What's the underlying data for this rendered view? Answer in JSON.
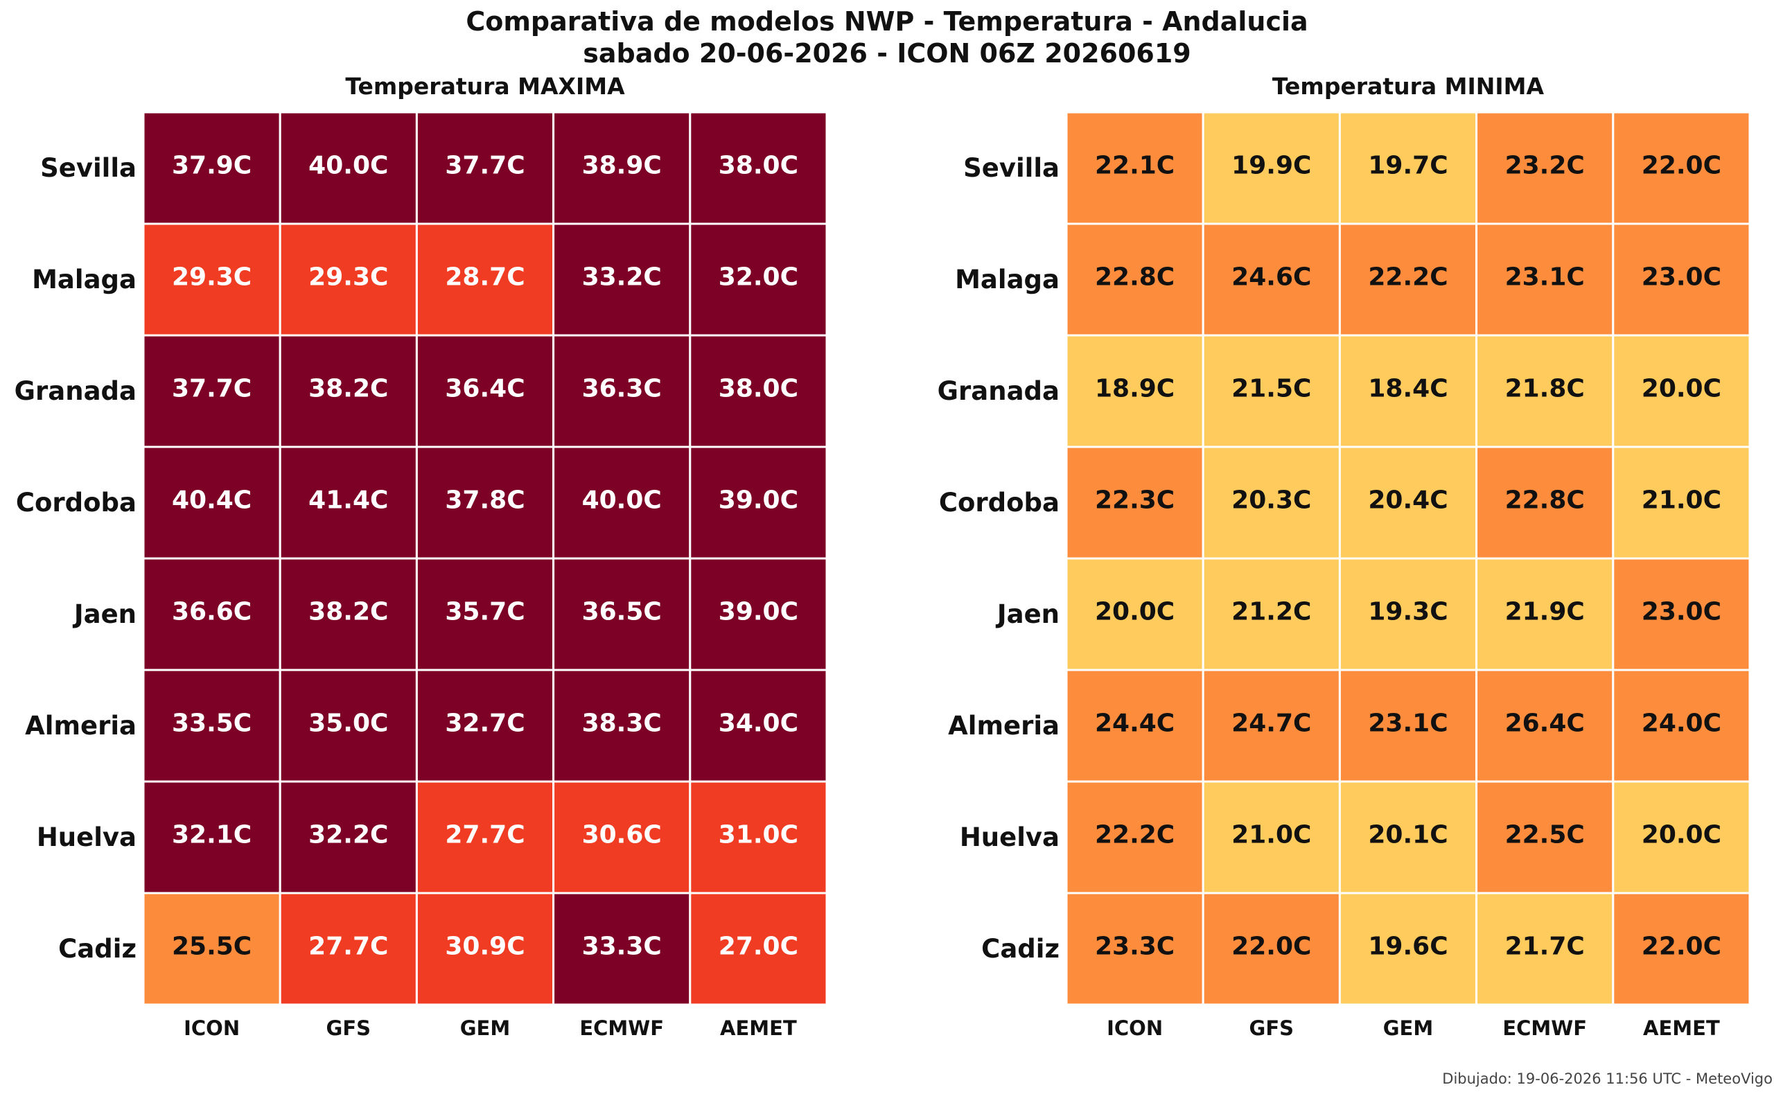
{
  "title_line1": "Comparativa de modelos NWP - Temperatura - Andalucia",
  "title_line2": "sabado 20-06-2026 - ICON 06Z 20260619",
  "footer": "Dibujado: 19-06-2026 11:56 UTC - MeteoVigo",
  "chart_data": [
    {
      "type": "heatmap",
      "title": "Temperatura MAXIMA",
      "x_categories": [
        "ICON",
        "GFS",
        "GEM",
        "ECMWF",
        "AEMET"
      ],
      "y_categories": [
        "Sevilla",
        "Malaga",
        "Granada",
        "Cordoba",
        "Jaen",
        "Almeria",
        "Huelva",
        "Cadiz"
      ],
      "unit": "C",
      "values": [
        [
          37.9,
          40.0,
          37.7,
          38.9,
          38.0
        ],
        [
          29.3,
          29.3,
          28.7,
          33.2,
          32.0
        ],
        [
          37.7,
          38.2,
          36.4,
          36.3,
          38.0
        ],
        [
          40.4,
          41.4,
          37.8,
          40.0,
          39.0
        ],
        [
          36.6,
          38.2,
          35.7,
          36.5,
          39.0
        ],
        [
          33.5,
          35.0,
          32.7,
          38.3,
          34.0
        ],
        [
          32.1,
          32.2,
          27.7,
          30.6,
          31.0
        ],
        [
          25.5,
          27.7,
          30.9,
          33.3,
          27.0
        ]
      ],
      "color_bins": [
        {
          "min": 0,
          "max": 27,
          "color": "#fc8c3c",
          "text_color": "#111111"
        },
        {
          "min": 27,
          "max": 32,
          "color": "#f03c22",
          "text_color": "#ffffff"
        },
        {
          "min": 32,
          "max": 99,
          "color": "#7d0027",
          "text_color": "#ffffff"
        }
      ]
    },
    {
      "type": "heatmap",
      "title": "Temperatura MINIMA",
      "x_categories": [
        "ICON",
        "GFS",
        "GEM",
        "ECMWF",
        "AEMET"
      ],
      "y_categories": [
        "Sevilla",
        "Malaga",
        "Granada",
        "Cordoba",
        "Jaen",
        "Almeria",
        "Huelva",
        "Cadiz"
      ],
      "unit": "C",
      "values": [
        [
          22.1,
          19.9,
          19.7,
          23.2,
          22.0
        ],
        [
          22.8,
          24.6,
          22.2,
          23.1,
          23.0
        ],
        [
          18.9,
          21.5,
          18.4,
          21.8,
          20.0
        ],
        [
          22.3,
          20.3,
          20.4,
          22.8,
          21.0
        ],
        [
          20.0,
          21.2,
          19.3,
          21.9,
          23.0
        ],
        [
          24.4,
          24.7,
          23.1,
          26.4,
          24.0
        ],
        [
          22.2,
          21.0,
          20.1,
          22.5,
          20.0
        ],
        [
          23.3,
          22.0,
          19.6,
          21.7,
          22.0
        ]
      ],
      "color_bins": [
        {
          "min": 0,
          "max": 22,
          "color": "#fecb5c",
          "text_color": "#111111"
        },
        {
          "min": 22,
          "max": 99,
          "color": "#fd8d3c",
          "text_color": "#111111"
        }
      ]
    }
  ]
}
